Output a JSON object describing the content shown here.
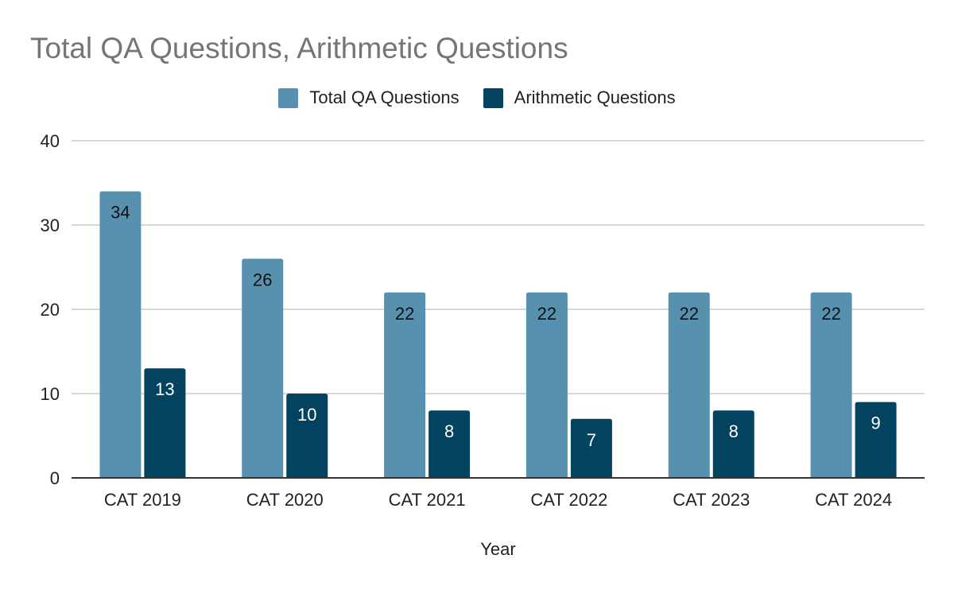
{
  "chart_data": {
    "type": "bar",
    "title": "Total QA Questions, Arithmetic Questions",
    "xlabel": "Year",
    "ylabel": "",
    "categories": [
      "CAT 2019",
      "CAT 2020",
      "CAT 2021",
      "CAT 2022",
      "CAT 2023",
      "CAT 2024"
    ],
    "series": [
      {
        "name": "Total QA Questions",
        "values": [
          34,
          26,
          22,
          22,
          22,
          22
        ],
        "color": "#5891b0",
        "label_color": "#111111"
      },
      {
        "name": "Arithmetic Questions",
        "values": [
          13,
          10,
          8,
          7,
          8,
          9
        ],
        "color": "#03435f",
        "label_color": "#ffffff"
      }
    ],
    "ylim": [
      0,
      40
    ],
    "yticks": [
      0,
      10,
      20,
      30,
      40
    ],
    "grid": true,
    "legend_position": "top-center"
  }
}
